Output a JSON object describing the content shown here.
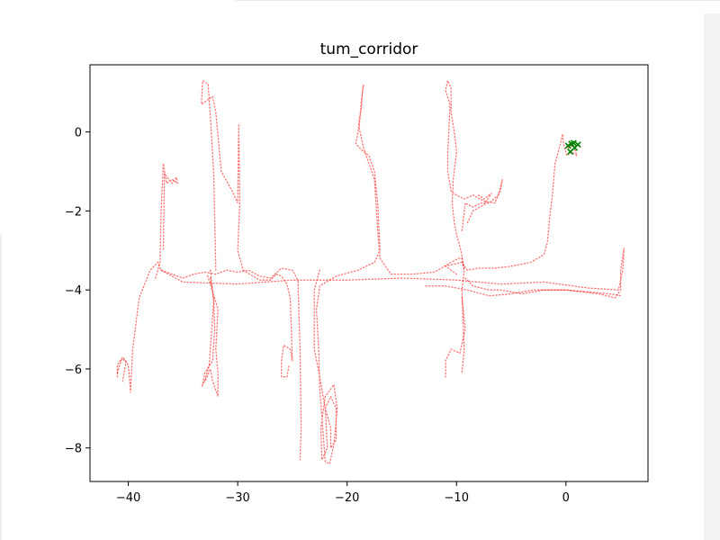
{
  "chart_data": {
    "type": "scatter",
    "title": "tum_corridor",
    "xlabel": "",
    "ylabel": "",
    "xlim": [
      -43.5,
      7.5
    ],
    "ylim": [
      -8.85,
      1.7
    ],
    "xticks": [
      -40,
      -30,
      -20,
      -10,
      0
    ],
    "xtick_labels": [
      "−40",
      "−30",
      "−20",
      "−10",
      "0"
    ],
    "yticks": [
      0,
      -2,
      -4,
      -6,
      -8
    ],
    "ytick_labels": [
      "0",
      "−2",
      "−4",
      "−6",
      "−8"
    ],
    "grid": false,
    "legend": "none",
    "colors": {
      "trajectory": "#ff0000",
      "marker": "#008000",
      "frame": "#000000"
    },
    "series": [
      {
        "color": "#ff0000",
        "marker": "dot",
        "paths": [
          [
            [
              -41,
              -6.2
            ],
            [
              -41,
              -5.9
            ],
            [
              -40.5,
              -5.7
            ],
            [
              -40,
              -5.9
            ],
            [
              -39.9,
              -6.2
            ],
            [
              -39.8,
              -6.6
            ],
            [
              -39.6,
              -5.5
            ],
            [
              -39,
              -4.2
            ],
            [
              -38,
              -3.5
            ],
            [
              -37.3,
              -3.3
            ],
            [
              -37,
              -3.5
            ],
            [
              -36,
              -3.6
            ],
            [
              -35,
              -3.7
            ],
            [
              -34,
              -3.6
            ],
            [
              -33,
              -3.55
            ],
            [
              -32,
              -3.6
            ],
            [
              -31,
              -3.5
            ],
            [
              -30,
              -3.55
            ],
            [
              -29,
              -3.5
            ],
            [
              -28,
              -3.65
            ],
            [
              -27,
              -3.7
            ],
            [
              -26,
              -3.45
            ],
            [
              -25,
              -3.5
            ],
            [
              -24.5,
              -3.75
            ],
            [
              -24.3,
              -5.5
            ],
            [
              -24.2,
              -7.5
            ],
            [
              -24.3,
              -8.3
            ]
          ],
          [
            [
              -37.5,
              -3.7
            ],
            [
              -37.1,
              -3.3
            ],
            [
              -37,
              -2
            ],
            [
              -36.8,
              -0.8
            ],
            [
              -36.5,
              -1.3
            ],
            [
              -36,
              -1.2
            ],
            [
              -35.5,
              -1.3
            ],
            [
              -35.6,
              -1.15
            ],
            [
              -36,
              -1.3
            ],
            [
              -36.7,
              -1.05
            ],
            [
              -36.8,
              -3
            ]
          ],
          [
            [
              -41,
              -6.1
            ],
            [
              -40.6,
              -5.75
            ],
            [
              -40.2,
              -5.8
            ],
            [
              -40.5,
              -6.3
            ]
          ],
          [
            [
              -32,
              -3.5
            ],
            [
              -32.2,
              -1
            ],
            [
              -32.5,
              0.4
            ],
            [
              -32.7,
              1.2
            ],
            [
              -33.2,
              1.3
            ],
            [
              -33.3,
              0.8
            ],
            [
              -33.3,
              0.7
            ],
            [
              -32.8,
              0.8
            ],
            [
              -32.3,
              0.9
            ],
            [
              -32,
              0.5
            ],
            [
              -31.5,
              -1
            ],
            [
              -30.5,
              -1.5
            ],
            [
              -30,
              -1.8
            ],
            [
              -29.9,
              0.2
            ],
            [
              -29.8,
              -1.8
            ],
            [
              -30,
              -3
            ],
            [
              -29.5,
              -3.5
            ],
            [
              -28,
              -3.75
            ],
            [
              -27,
              -3.75
            ],
            [
              -26.5,
              -3.6
            ],
            [
              -26,
              -3.65
            ],
            [
              -25.5,
              -3.85
            ],
            [
              -25.2,
              -4.2
            ],
            [
              -25,
              -5.8
            ],
            [
              -25.2,
              -5.5
            ],
            [
              -25.8,
              -5.4
            ],
            [
              -26,
              -5.8
            ],
            [
              -26,
              -6.2
            ],
            [
              -25.5,
              -6.2
            ],
            [
              -25.3,
              -5.9
            ]
          ],
          [
            [
              -32.5,
              -3.7
            ],
            [
              -32.2,
              -4.2
            ],
            [
              -32.1,
              -5
            ],
            [
              -32.3,
              -5.8
            ],
            [
              -33,
              -6.1
            ],
            [
              -33.2,
              -6.4
            ],
            [
              -33.3,
              -6.45
            ],
            [
              -32.8,
              -6.2
            ],
            [
              -32.5,
              -6
            ],
            [
              -32.3,
              -6.3
            ],
            [
              -31.8,
              -6.7
            ],
            [
              -31.8,
              -6.1
            ],
            [
              -32,
              -5.5
            ],
            [
              -31.8,
              -4.5
            ],
            [
              -32,
              -4.3
            ],
            [
              -32.8,
              -3.6
            ]
          ],
          [
            [
              -32.5,
              -3.5
            ],
            [
              -32.2,
              -4.3
            ],
            [
              -32.6,
              -5.9
            ],
            [
              -33,
              -6.3
            ]
          ],
          [
            [
              -22.5,
              -3.5
            ],
            [
              -23,
              -4
            ],
            [
              -23,
              -5.5
            ],
            [
              -22.5,
              -6.2
            ],
            [
              -22,
              -7
            ],
            [
              -21.5,
              -7.5
            ],
            [
              -21.5,
              -8
            ],
            [
              -21,
              -7.8
            ],
            [
              -21,
              -7
            ],
            [
              -21.5,
              -6.7
            ],
            [
              -22,
              -7
            ],
            [
              -21.8,
              -8
            ],
            [
              -22.3,
              -8.3
            ],
            [
              -22.4,
              -7.5
            ],
            [
              -22,
              -6.7
            ],
            [
              -21.2,
              -6.4
            ],
            [
              -20.9,
              -7
            ],
            [
              -21.2,
              -7.9
            ],
            [
              -21.6,
              -8.4
            ],
            [
              -22,
              -8.35
            ],
            [
              -22.5,
              -6.5
            ],
            [
              -22.6,
              -5.5
            ],
            [
              -22.8,
              -4.5
            ],
            [
              -22.5,
              -3.9
            ],
            [
              -21,
              -3.65
            ],
            [
              -19,
              -3.5
            ],
            [
              -17.5,
              -3.3
            ],
            [
              -17,
              -3
            ],
            [
              -17.2,
              -1.8
            ],
            [
              -17.5,
              -1
            ],
            [
              -18,
              -0.6
            ],
            [
              -18.7,
              -0.45
            ],
            [
              -19.2,
              -0.3
            ],
            [
              -19,
              0
            ],
            [
              -18.9,
              0.3
            ],
            [
              -18.7,
              0.6
            ],
            [
              -18.6,
              1
            ],
            [
              -18.5,
              1.2
            ],
            [
              -18.7,
              0.8
            ],
            [
              -18.9,
              0.1
            ],
            [
              -18.5,
              -0.4
            ],
            [
              -17.5,
              -1.2
            ],
            [
              -17.2,
              -2.5
            ],
            [
              -17,
              -3.2
            ],
            [
              -16,
              -3.6
            ],
            [
              -14,
              -3.6
            ],
            [
              -12,
              -3.55
            ],
            [
              -10.5,
              -3.3
            ],
            [
              -9.8,
              -3.2
            ],
            [
              -9.5,
              -3.2
            ],
            [
              -9.3,
              -3.5
            ]
          ],
          [
            [
              -10,
              -3.6
            ],
            [
              -10.5,
              -3.5
            ],
            [
              -11,
              -3.4
            ],
            [
              -9.5,
              -3.3
            ],
            [
              -9,
              -3.5
            ],
            [
              -8,
              -3.45
            ],
            [
              -6.5,
              -3.45
            ],
            [
              -5,
              -3.4
            ],
            [
              -3.2,
              -3.3
            ],
            [
              -2,
              -3.1
            ],
            [
              -1.7,
              -2.8
            ],
            [
              -1.5,
              -2.2
            ],
            [
              -1.2,
              -1.5
            ],
            [
              -1,
              -0.8
            ],
            [
              -0.5,
              -0.3
            ],
            [
              -0.3,
              -0.05
            ],
            [
              -0.2,
              -0.35
            ],
            [
              0.1,
              -0.6
            ],
            [
              0.5,
              -0.5
            ],
            [
              1,
              -0.6
            ],
            [
              0.7,
              -0.35
            ],
            [
              0,
              -0.4
            ],
            [
              0.3,
              -0.3
            ],
            [
              0.2,
              -0.45
            ]
          ],
          [
            [
              -9.5,
              -2.5
            ],
            [
              -9.2,
              -1.8
            ],
            [
              -8.5,
              -1.9
            ],
            [
              -7.8,
              -1.8
            ],
            [
              -7,
              -1.8
            ],
            [
              -6.2,
              -1.6
            ],
            [
              -5.8,
              -1.2
            ],
            [
              -6,
              -1.5
            ],
            [
              -6.5,
              -1.8
            ],
            [
              -7.5,
              -1.75
            ],
            [
              -8.5,
              -1.6
            ],
            [
              -9.3,
              -1.7
            ],
            [
              -10,
              -1.6
            ],
            [
              -10.5,
              -1.5
            ],
            [
              -10.8,
              -1
            ],
            [
              -10.8,
              -0.5
            ],
            [
              -10.7,
              0
            ],
            [
              -10.6,
              0.7
            ],
            [
              -11,
              1.05
            ],
            [
              -10.8,
              1.3
            ],
            [
              -10.5,
              1.1
            ],
            [
              -10.5,
              0.5
            ],
            [
              -10.2,
              0
            ],
            [
              -10,
              -0.5
            ],
            [
              -10.3,
              -1.2
            ],
            [
              -10.4,
              -1.8
            ],
            [
              -10.2,
              -2.3
            ],
            [
              -10,
              -2.6
            ],
            [
              -9.6,
              -3
            ],
            [
              -9.3,
              -3.5
            ],
            [
              -9.5,
              -4
            ],
            [
              -9.4,
              -4.8
            ],
            [
              -9.3,
              -5.5
            ],
            [
              -9.5,
              -6.1
            ]
          ],
          [
            [
              -9.5,
              -4.2
            ],
            [
              -9.2,
              -5
            ],
            [
              -9.7,
              -5.6
            ],
            [
              -10.5,
              -5.5
            ],
            [
              -11,
              -5.8
            ],
            [
              -11,
              -6.2
            ]
          ],
          [
            [
              -9,
              -2.3
            ],
            [
              -8.5,
              -2
            ],
            [
              -7.5,
              -1.85
            ],
            [
              -6.8,
              -1.55
            ],
            [
              -7.5,
              -1.7
            ],
            [
              -8,
              -1.6
            ]
          ],
          [
            [
              -37,
              -3.5
            ],
            [
              -35,
              -3.8
            ],
            [
              -30,
              -3.85
            ],
            [
              -25,
              -3.75
            ],
            [
              -20,
              -3.75
            ],
            [
              -15,
              -3.7
            ],
            [
              -10,
              -3.75
            ],
            [
              -6,
              -3.85
            ],
            [
              -2,
              -3.8
            ],
            [
              2,
              -3.95
            ],
            [
              4.8,
              -4
            ],
            [
              5.2,
              -3.5
            ],
            [
              5.3,
              -2.95
            ],
            [
              5,
              -3.5
            ],
            [
              5,
              -4
            ],
            [
              4.5,
              -4.2
            ],
            [
              3,
              -4.1
            ],
            [
              0,
              -4
            ],
            [
              -3,
              -4
            ],
            [
              -5,
              -4.1
            ],
            [
              -7,
              -4.15
            ],
            [
              -9,
              -4
            ],
            [
              -11,
              -3.9
            ],
            [
              -13,
              -3.9
            ]
          ],
          [
            [
              -9.2,
              -3.7
            ],
            [
              -8.5,
              -3.9
            ],
            [
              -7,
              -4
            ],
            [
              -6,
              -4
            ],
            [
              -5,
              -4.05
            ],
            [
              -4,
              -4.1
            ],
            [
              -2,
              -4
            ],
            [
              0,
              -4
            ],
            [
              2,
              -4.05
            ],
            [
              4,
              -4.1
            ],
            [
              5.1,
              -4.15
            ]
          ]
        ]
      },
      {
        "color": "#008000",
        "marker": "x",
        "points": [
          [
            0.2,
            -0.35
          ],
          [
            0.5,
            -0.3
          ],
          [
            0.8,
            -0.4
          ],
          [
            1.1,
            -0.32
          ],
          [
            0.4,
            -0.5
          ],
          [
            0.7,
            -0.28
          ]
        ]
      }
    ]
  }
}
